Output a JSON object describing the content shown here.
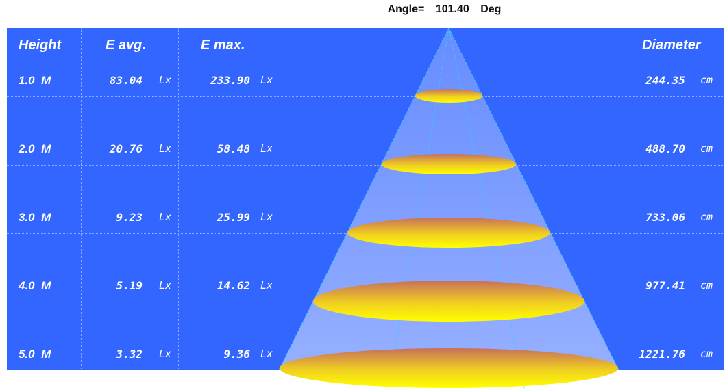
{
  "angle": {
    "label": "Angle=",
    "value": "101.40",
    "unit": "Deg"
  },
  "headers": {
    "height": "Height",
    "e_avg": "E avg.",
    "e_max": "E max.",
    "diameter": "Diameter"
  },
  "rows": [
    {
      "height": "1.0  M",
      "e_avg": "83.04",
      "e_avg_unit": "Lx",
      "e_max": "233.90",
      "e_max_unit": "Lx",
      "diameter": "244.35",
      "diameter_unit": "cm"
    },
    {
      "height": "2.0  M",
      "e_avg": "20.76",
      "e_avg_unit": "Lx",
      "e_max": "58.48",
      "e_max_unit": "Lx",
      "diameter": "488.70",
      "diameter_unit": "cm"
    },
    {
      "height": "3.0  M",
      "e_avg": "9.23",
      "e_avg_unit": "Lx",
      "e_max": "25.99",
      "e_max_unit": "Lx",
      "diameter": "733.06",
      "diameter_unit": "cm"
    },
    {
      "height": "4.0  M",
      "e_avg": "5.19",
      "e_avg_unit": "Lx",
      "e_max": "14.62",
      "e_max_unit": "Lx",
      "diameter": "977.41",
      "diameter_unit": "cm"
    },
    {
      "height": "5.0  M",
      "e_avg": "3.32",
      "e_avg_unit": "Lx",
      "e_max": "9.36",
      "e_max_unit": "Lx",
      "diameter": "1221.76",
      "diameter_unit": "cm"
    }
  ],
  "colors": {
    "panel": "#3366ff",
    "cone_fill": "#dde4ff",
    "cone_edge": "#33ccff",
    "spot_top": "#d0704a",
    "spot_bottom": "#ffee00"
  }
}
